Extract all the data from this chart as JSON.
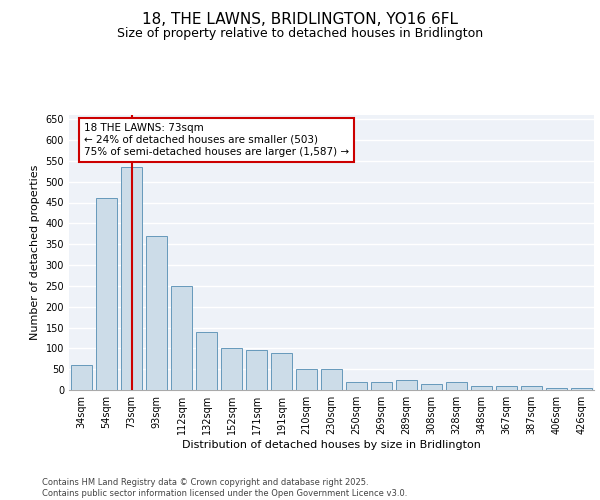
{
  "title_line1": "18, THE LAWNS, BRIDLINGTON, YO16 6FL",
  "title_line2": "Size of property relative to detached houses in Bridlington",
  "xlabel": "Distribution of detached houses by size in Bridlington",
  "ylabel": "Number of detached properties",
  "categories": [
    "34sqm",
    "54sqm",
    "73sqm",
    "93sqm",
    "112sqm",
    "132sqm",
    "152sqm",
    "171sqm",
    "191sqm",
    "210sqm",
    "230sqm",
    "250sqm",
    "269sqm",
    "289sqm",
    "308sqm",
    "328sqm",
    "348sqm",
    "367sqm",
    "387sqm",
    "406sqm",
    "426sqm"
  ],
  "values": [
    60,
    460,
    535,
    370,
    250,
    140,
    100,
    95,
    90,
    50,
    50,
    20,
    20,
    25,
    15,
    20,
    10,
    10,
    10,
    5,
    5
  ],
  "bar_color": "#ccdce8",
  "bar_edge_color": "#6699bb",
  "vline_x": 2,
  "vline_color": "#cc0000",
  "annotation_text": "18 THE LAWNS: 73sqm\n← 24% of detached houses are smaller (503)\n75% of semi-detached houses are larger (1,587) →",
  "annotation_box_color": "#ffffff",
  "annotation_box_edge": "#cc0000",
  "ylim": [
    0,
    660
  ],
  "yticks": [
    0,
    50,
    100,
    150,
    200,
    250,
    300,
    350,
    400,
    450,
    500,
    550,
    600,
    650
  ],
  "background_color": "#eef2f8",
  "grid_color": "#ffffff",
  "footer_text": "Contains HM Land Registry data © Crown copyright and database right 2025.\nContains public sector information licensed under the Open Government Licence v3.0.",
  "title_fontsize": 11,
  "subtitle_fontsize": 9,
  "tick_fontsize": 7,
  "label_fontsize": 8,
  "annotation_fontsize": 7.5,
  "footer_fontsize": 6
}
